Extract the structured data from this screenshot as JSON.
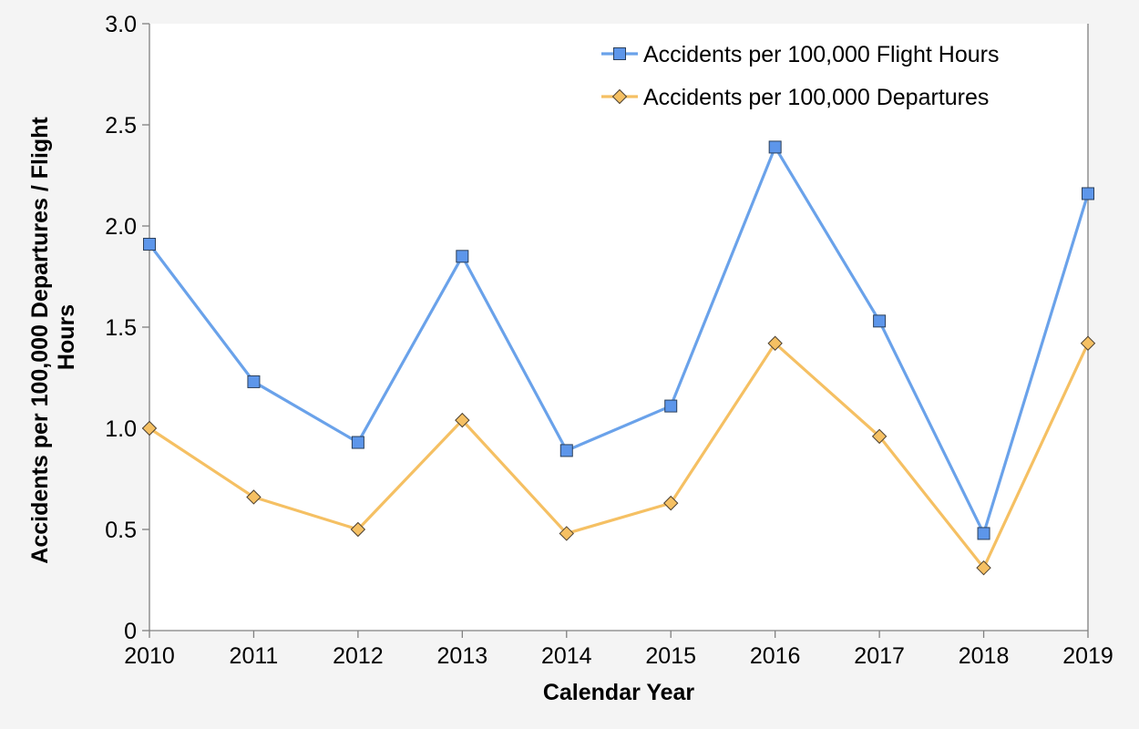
{
  "chart_data": {
    "type": "line",
    "title": "",
    "xlabel": "Calendar Year",
    "ylabel_lines": [
      "Accidents per 100,000 Departures / Flight",
      "Hours"
    ],
    "categories": [
      "2010",
      "2011",
      "2012",
      "2013",
      "2014",
      "2015",
      "2016",
      "2017",
      "2018",
      "2019"
    ],
    "y_ticks": [
      "0",
      "0.5",
      "1.0",
      "1.5",
      "2.0",
      "2.5",
      "3.0"
    ],
    "ylim": [
      0,
      3.0
    ],
    "grid": false,
    "legend_position": "top-right",
    "series": [
      {
        "name": "Accidents per 100,000 Flight Hours",
        "color": "#6aa2ea",
        "marker": "square",
        "marker_color": "#5d96ea",
        "values": [
          1.91,
          1.23,
          0.93,
          1.85,
          0.89,
          1.11,
          2.39,
          1.53,
          0.48,
          2.16
        ]
      },
      {
        "name": "Accidents per 100,000 Departures",
        "color": "#f5c063",
        "marker": "diamond",
        "marker_color": "#f5c063",
        "values": [
          1.0,
          0.66,
          0.5,
          1.04,
          0.48,
          0.63,
          1.42,
          0.96,
          0.31,
          1.42
        ]
      }
    ]
  }
}
